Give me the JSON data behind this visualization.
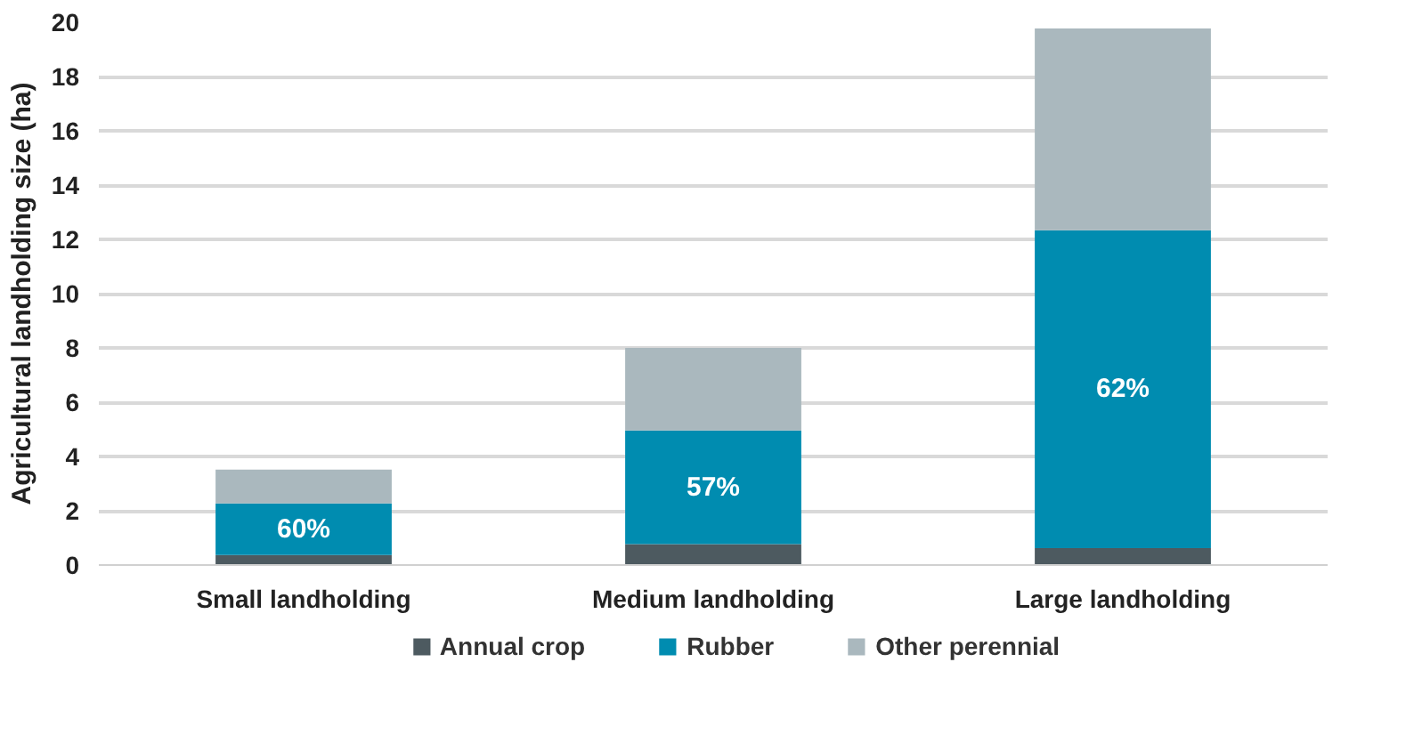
{
  "chart_data": {
    "type": "bar",
    "stacked": true,
    "ylabel": "Agricultural landholding size (ha)",
    "categories": [
      "Small landholding",
      "Medium landholding",
      "Large landholding"
    ],
    "series": [
      {
        "name": "Annual crop",
        "color": "#4d5a60",
        "values": [
          0.37,
          0.77,
          0.62
        ]
      },
      {
        "name": "Rubber",
        "color": "#008cb0",
        "values": [
          1.9,
          4.19,
          11.72
        ]
      },
      {
        "name": "Other perennial",
        "color": "#aab8be",
        "values": [
          1.25,
          3.04,
          7.43
        ]
      }
    ],
    "annotations": [
      "60%",
      "57%",
      "62%"
    ],
    "ylim": [
      0,
      20
    ],
    "yticks": [
      0,
      2,
      4,
      6,
      8,
      10,
      12,
      14,
      16,
      18,
      20
    ],
    "grid": "y",
    "legend": "bottom"
  }
}
